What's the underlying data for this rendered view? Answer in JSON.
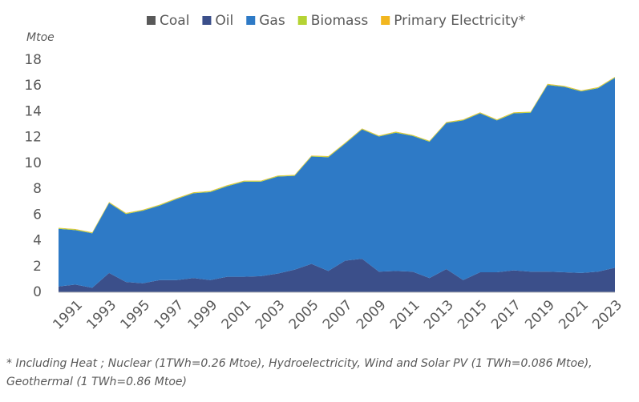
{
  "chart_data": {
    "type": "stacked_area",
    "y_label": "Mtoe",
    "x": [
      1990,
      1991,
      1992,
      1993,
      1994,
      1995,
      1996,
      1997,
      1998,
      1999,
      2000,
      2001,
      2002,
      2003,
      2004,
      2005,
      2006,
      2007,
      2008,
      2009,
      2010,
      2011,
      2012,
      2013,
      2014,
      2015,
      2016,
      2017,
      2018,
      2019,
      2020,
      2021,
      2022,
      2023
    ],
    "xlim": [
      1990,
      2023
    ],
    "xticks": [
      1991,
      1993,
      1995,
      1997,
      1999,
      2001,
      2003,
      2005,
      2007,
      2009,
      2011,
      2013,
      2015,
      2017,
      2019,
      2021,
      2023
    ],
    "ylim": [
      0,
      18
    ],
    "yticks": [
      0,
      2,
      4,
      6,
      8,
      10,
      12,
      14,
      16,
      18
    ],
    "series": [
      {
        "name": "Coal",
        "color": "#595959",
        "values": [
          0,
          0,
          0,
          0,
          0,
          0,
          0,
          0,
          0,
          0,
          0,
          0,
          0,
          0,
          0,
          0,
          0,
          0,
          0,
          0,
          0,
          0,
          0,
          0,
          0,
          0,
          0,
          0,
          0,
          0,
          0,
          0,
          0,
          0
        ]
      },
      {
        "name": "Oil",
        "color": "#3b4f8a",
        "values": [
          0.45,
          0.6,
          0.35,
          1.5,
          0.8,
          0.7,
          0.95,
          0.95,
          1.1,
          0.95,
          1.2,
          1.2,
          1.25,
          1.45,
          1.75,
          2.2,
          1.65,
          2.45,
          2.6,
          1.6,
          1.65,
          1.6,
          1.1,
          1.8,
          0.95,
          1.55,
          1.55,
          1.7,
          1.6,
          1.6,
          1.55,
          1.5,
          1.6,
          1.9
        ]
      },
      {
        "name": "Gas",
        "color": "#2e7ac6",
        "values": [
          4.47,
          4.22,
          4.22,
          5.42,
          5.27,
          5.62,
          5.77,
          6.27,
          6.57,
          6.82,
          7.02,
          7.37,
          7.32,
          7.52,
          7.27,
          8.32,
          8.82,
          9.07,
          10.02,
          10.47,
          10.72,
          10.52,
          10.57,
          11.32,
          12.37,
          12.32,
          11.77,
          12.17,
          12.32,
          14.47,
          14.37,
          14.07,
          14.22,
          14.72
        ]
      },
      {
        "name": "Biomass",
        "color": "#b5d334",
        "values": [
          0.05,
          0.05,
          0.05,
          0.05,
          0.05,
          0.05,
          0.05,
          0.05,
          0.05,
          0.05,
          0.05,
          0.05,
          0.05,
          0.05,
          0.05,
          0.05,
          0.05,
          0.05,
          0.05,
          0.05,
          0.05,
          0.05,
          0.05,
          0.05,
          0.05,
          0.05,
          0.05,
          0.05,
          0.05,
          0.05,
          0.05,
          0.05,
          0.05,
          0.05
        ]
      },
      {
        "name": "Primary Electricity*",
        "color": "#f2b61f",
        "values": [
          0.03,
          0.03,
          0.03,
          0.03,
          0.03,
          0.03,
          0.03,
          0.03,
          0.03,
          0.03,
          0.03,
          0.03,
          0.03,
          0.03,
          0.03,
          0.03,
          0.03,
          0.03,
          0.03,
          0.03,
          0.03,
          0.03,
          0.03,
          0.03,
          0.03,
          0.03,
          0.03,
          0.03,
          0.03,
          0.03,
          0.03,
          0.03,
          0.03,
          0.03
        ]
      }
    ],
    "footnote": [
      "* Including Heat ; Nuclear (1TWh=0.26 Mtoe), Hydroelectricity, Wind and Solar PV (1 TWh=0.086 Mtoe),",
      "Geothermal (1 TWh=0.86 Mtoe)"
    ]
  }
}
